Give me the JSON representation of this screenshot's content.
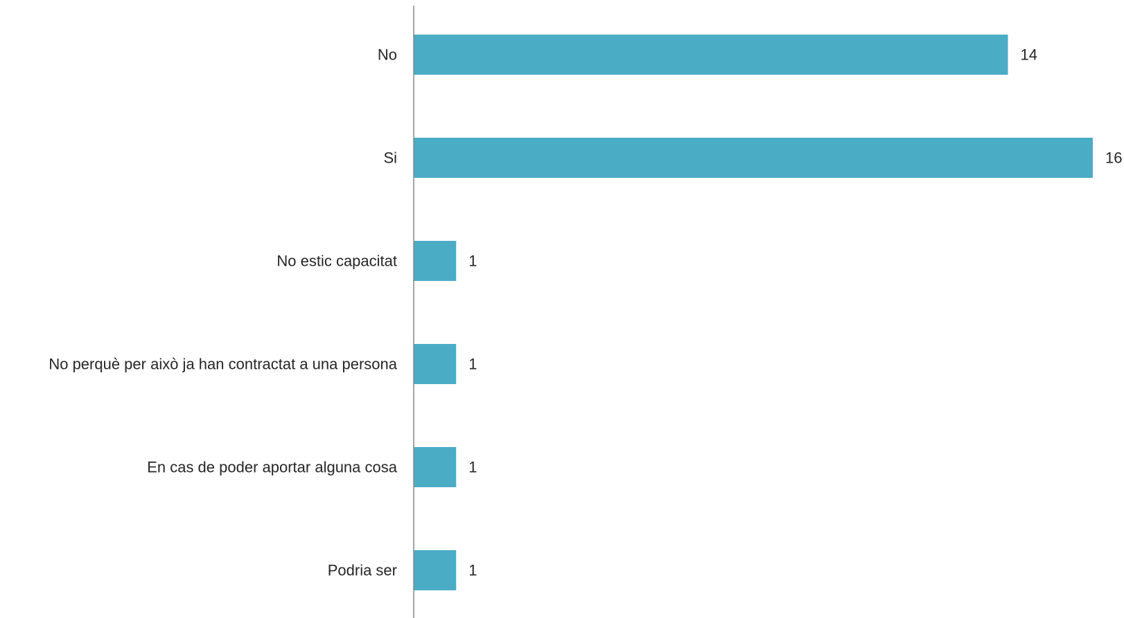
{
  "chart_data": {
    "type": "bar",
    "orientation": "horizontal",
    "categories": [
      "No",
      "Si",
      "No estic capacitat",
      "No perquè per això ja han contractat a una persona",
      "En cas de poder aportar alguna cosa",
      "Podria ser"
    ],
    "values": [
      14,
      16,
      1,
      1,
      1,
      1
    ],
    "value_labels": [
      "14",
      "16",
      "1",
      "1",
      "1",
      "1"
    ],
    "title": "",
    "xlabel": "",
    "ylabel": "",
    "xlim": [
      0,
      16
    ],
    "grid": false,
    "legend": "none",
    "bar_color": "#4bacc6",
    "axis_color": "#868686",
    "text_color": "#262626"
  }
}
